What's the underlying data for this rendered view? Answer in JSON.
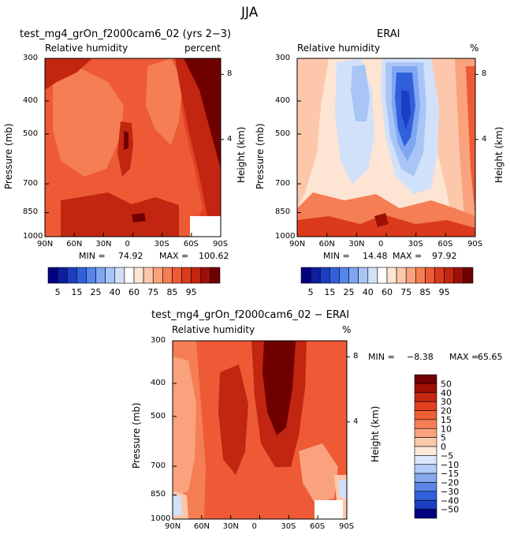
{
  "figure_title": "JJA",
  "chart_data": [
    {
      "type": "heatmap",
      "title": "test_mg4_grOn_f2000cam6_02 (yrs 2−3)",
      "subtitle_left": "Relative humidity",
      "subtitle_right": "percent",
      "ylabel": "Pressure (mb)",
      "ylabel_right": "Height (km)",
      "x_ticks": [
        "90N",
        "60N",
        "30N",
        "0",
        "30S",
        "60S",
        "90S"
      ],
      "y_ticks": [
        "300",
        "400",
        "500",
        "700",
        "850",
        "1000"
      ],
      "y_ticks_right": [
        "8",
        "4"
      ],
      "min_label": "MIN =",
      "min_value": "74.92",
      "max_label": "MAX =",
      "max_value": "100.62",
      "colorbar_labels": [
        "5",
        "15",
        "25",
        "40",
        "60",
        "75",
        "85",
        "95"
      ]
    },
    {
      "type": "heatmap",
      "title": "ERAI",
      "subtitle_left": "Relative humidity",
      "subtitle_right": "%",
      "ylabel": "Pressure (mb)",
      "ylabel_right": "Height (km)",
      "x_ticks": [
        "90N",
        "60N",
        "30N",
        "0",
        "30S",
        "60S",
        "90S"
      ],
      "y_ticks": [
        "300",
        "400",
        "500",
        "700",
        "850",
        "1000"
      ],
      "y_ticks_right": [
        "8",
        "4"
      ],
      "min_label": "MIN =",
      "min_value": "14.48",
      "max_label": "MAX =",
      "max_value": "97.92",
      "colorbar_labels": [
        "5",
        "15",
        "25",
        "40",
        "60",
        "75",
        "85",
        "95"
      ]
    },
    {
      "type": "heatmap",
      "title": "test_mg4_grOn_f2000cam6_02 − ERAI",
      "subtitle_left": "Relative humidity",
      "subtitle_right": "%",
      "ylabel": "Pressure (mb)",
      "ylabel_right": "Height (km)",
      "x_ticks": [
        "90N",
        "60N",
        "30N",
        "0",
        "30S",
        "60S",
        "90S"
      ],
      "y_ticks": [
        "300",
        "400",
        "500",
        "700",
        "850",
        "1000"
      ],
      "y_ticks_right": [
        "8",
        "4"
      ],
      "min_label": "MIN =",
      "min_value": "−8.38",
      "max_label": "MAX =",
      "max_value": "65.65",
      "colorbar_labels": [
        "50",
        "40",
        "30",
        "20",
        "15",
        "10",
        "5",
        "0",
        "−5",
        "−10",
        "−15",
        "−20",
        "−30",
        "−40",
        "−50"
      ]
    }
  ],
  "colors": {
    "abs_scale": [
      "#000080",
      "#0d1ea0",
      "#1c3ec0",
      "#3060dc",
      "#5585ea",
      "#7fa6f2",
      "#a8c5f6",
      "#d2e1fa",
      "#ffffff",
      "#fde4d3",
      "#fcc7ab",
      "#f9a27d",
      "#f57e54",
      "#ed5a35",
      "#dc3a1c",
      "#c22510",
      "#9c1005",
      "#700000"
    ],
    "diff_scale": [
      "#700000",
      "#a01005",
      "#c52810",
      "#e04020",
      "#f06035",
      "#f77f55",
      "#fba27e",
      "#fdc9ab",
      "#fee8da",
      "#dbe7fb",
      "#b2ccf6",
      "#87a9f0",
      "#5a85e6",
      "#3060dc",
      "#1c3ec0",
      "#000080"
    ]
  }
}
